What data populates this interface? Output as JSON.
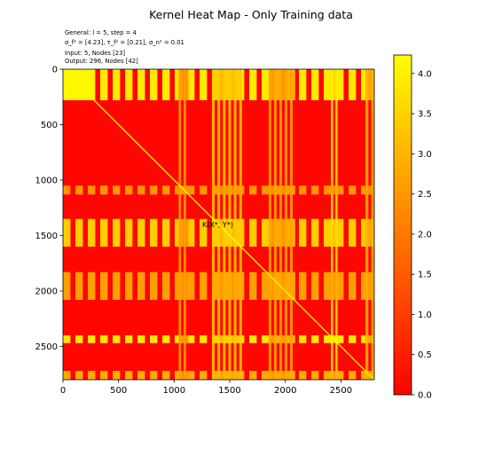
{
  "chart_data": {
    "type": "heatmap",
    "title": "Kernel Heat Map - Only Training data",
    "info": {
      "line1": "General: l = 5, step = 4",
      "line2": "σ_f² = [4.23], τ_f² = [0.21], σ_n² = 0.01",
      "line3": "Input: 5, Nodes [23]",
      "line4": "Output: 296, Nodes [42]"
    },
    "annotation": "K(X*, Y*)",
    "xlim": [
      0,
      2800
    ],
    "ylim": [
      2800,
      0
    ],
    "xticks": [
      "0",
      "500",
      "1000",
      "1500",
      "2000",
      "2500"
    ],
    "yticks": [
      "0",
      "500",
      "1000",
      "1500",
      "2000",
      "2500"
    ],
    "colorbar": {
      "min": 0.0,
      "max": 4.23,
      "ticks": [
        "0.0",
        "0.5",
        "1.0",
        "1.5",
        "2.0",
        "2.5",
        "3.0",
        "3.5",
        "4.0"
      ],
      "colors": [
        "#ff0000",
        "#ff8000",
        "#ffff00"
      ]
    },
    "base_value": 0.1,
    "diagonal_value": 4.23,
    "bands": [
      {
        "start": 0,
        "end": 280,
        "value": 4.1
      },
      {
        "start": 1050,
        "end": 1130,
        "value": 2.6
      },
      {
        "start": 1350,
        "end": 1600,
        "value": 3.6
      },
      {
        "start": 1830,
        "end": 2080,
        "value": 2.8
      },
      {
        "start": 2400,
        "end": 2470,
        "value": 4.0
      },
      {
        "start": 2720,
        "end": 2800,
        "value": 3.0
      }
    ],
    "column_bands": [
      {
        "start": 1040,
        "end": 1130,
        "value": 2.6
      },
      {
        "start": 1340,
        "end": 1610,
        "value": 3.4
      },
      {
        "start": 1850,
        "end": 2090,
        "value": 2.8
      },
      {
        "start": 2410,
        "end": 2470,
        "value": 4.0
      },
      {
        "start": 2720,
        "end": 2800,
        "value": 3.0
      }
    ]
  }
}
